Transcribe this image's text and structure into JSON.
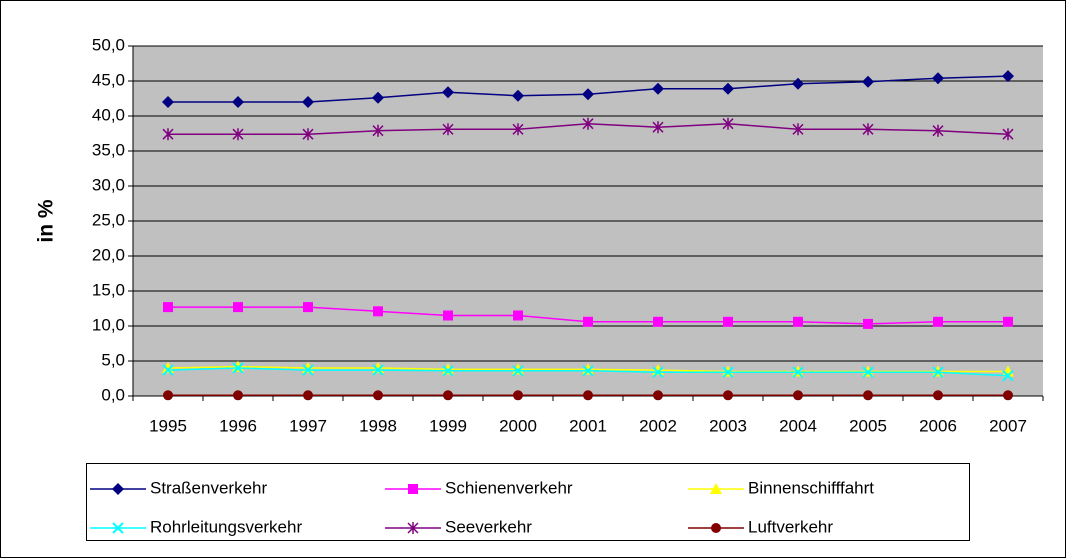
{
  "chart_data": {
    "type": "line",
    "y_label": "in %",
    "categories": [
      "1995",
      "1996",
      "1997",
      "1998",
      "1999",
      "2000",
      "2001",
      "2002",
      "2003",
      "2004",
      "2005",
      "2006",
      "2007"
    ],
    "ylim": [
      0,
      50
    ],
    "yticks": [
      {
        "value": 0,
        "label": "0,0"
      },
      {
        "value": 5,
        "label": "5,0"
      },
      {
        "value": 10,
        "label": "10,0"
      },
      {
        "value": 15,
        "label": "15,0"
      },
      {
        "value": 20,
        "label": "20,0"
      },
      {
        "value": 25,
        "label": "25,0"
      },
      {
        "value": 30,
        "label": "30,0"
      },
      {
        "value": 35,
        "label": "35,0"
      },
      {
        "value": 40,
        "label": "40,0"
      },
      {
        "value": 45,
        "label": "45,0"
      },
      {
        "value": 50,
        "label": "50,0"
      }
    ],
    "grid": true,
    "plot_background": "#c0c0c0",
    "series": [
      {
        "name": "Straßenverkehr",
        "color": "#000080",
        "marker": "diamond",
        "values": [
          42.0,
          42.0,
          42.0,
          42.6,
          43.4,
          42.9,
          43.1,
          43.9,
          43.9,
          44.6,
          44.9,
          45.4,
          45.7
        ]
      },
      {
        "name": "Schienenverkehr",
        "color": "#ff00ff",
        "marker": "square",
        "values": [
          12.7,
          12.7,
          12.7,
          12.1,
          11.5,
          11.5,
          10.6,
          10.6,
          10.6,
          10.6,
          10.3,
          10.6,
          10.6
        ]
      },
      {
        "name": "Binnenschifffahrt",
        "color": "#ffff00",
        "marker": "triangle",
        "values": [
          4.0,
          4.2,
          4.0,
          4.0,
          3.8,
          3.8,
          3.8,
          3.7,
          3.5,
          3.5,
          3.5,
          3.5,
          3.5
        ]
      },
      {
        "name": "Rohrleitungsverkehr",
        "color": "#00ffff",
        "marker": "x",
        "values": [
          3.7,
          4.0,
          3.7,
          3.7,
          3.6,
          3.6,
          3.6,
          3.4,
          3.4,
          3.4,
          3.4,
          3.4,
          2.9
        ]
      },
      {
        "name": "Seeverkehr",
        "color": "#800080",
        "marker": "star",
        "values": [
          37.4,
          37.4,
          37.4,
          37.9,
          38.1,
          38.1,
          38.9,
          38.4,
          38.9,
          38.1,
          38.1,
          37.9,
          37.4
        ]
      },
      {
        "name": "Luftverkehr",
        "color": "#800000",
        "marker": "circle",
        "values": [
          0.1,
          0.1,
          0.1,
          0.1,
          0.1,
          0.1,
          0.1,
          0.1,
          0.1,
          0.1,
          0.1,
          0.1,
          0.1
        ]
      }
    ]
  }
}
